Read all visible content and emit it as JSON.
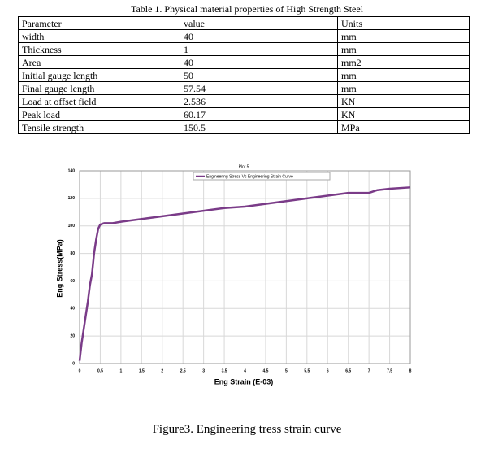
{
  "table": {
    "caption": "Table 1. Physical material properties of High Strength Steel",
    "header": [
      "Parameter",
      "value",
      "Units"
    ],
    "rows": [
      [
        "width",
        40,
        "mm"
      ],
      [
        "Thickness",
        1,
        "mm"
      ],
      [
        "Area",
        40,
        "mm2"
      ],
      [
        "Initial gauge length",
        50,
        "mm"
      ],
      [
        "Final gauge length",
        57.54,
        "mm"
      ],
      [
        "Load at offset field",
        2.536,
        "KN"
      ],
      [
        "Peak load",
        60.17,
        "KN"
      ],
      [
        "Tensile strength",
        150.5,
        "MPa"
      ]
    ]
  },
  "chart_data": {
    "type": "line",
    "title": "Plot 5",
    "x_label": "Eng Strain (E-03)",
    "y_label": "Eng Stress(MPa)",
    "series": [
      {
        "name": "Engineering Stress Vs Engineering Strain Curve",
        "color": "#7a3b88",
        "x": [
          0,
          0.05,
          0.1,
          0.15,
          0.2,
          0.25,
          0.3,
          0.35,
          0.4,
          0.45,
          0.5,
          0.6,
          0.8,
          1,
          1.5,
          2,
          2.5,
          3,
          3.5,
          4,
          4.5,
          5,
          5.5,
          6,
          6.5,
          7,
          7.2,
          7.5,
          8
        ],
        "values": [
          2,
          15,
          25,
          35,
          45,
          57,
          65,
          80,
          90,
          98,
          101,
          102,
          102,
          103,
          105,
          107,
          109,
          111,
          113,
          114,
          116,
          118,
          120,
          122,
          124,
          124,
          126,
          127,
          128
        ]
      }
    ],
    "xlim": [
      0,
      8
    ],
    "ylim": [
      0,
      140
    ],
    "xticks": [
      0,
      0.5,
      1,
      1.5,
      2,
      2.5,
      3,
      3.5,
      4,
      4.5,
      5,
      5.5,
      6,
      6.5,
      7,
      7.5,
      8
    ],
    "yticks": [
      0,
      20,
      40,
      60,
      80,
      100,
      120,
      140
    ],
    "grid": true
  },
  "figure_caption": "Figure3. Engineering tress strain curve"
}
